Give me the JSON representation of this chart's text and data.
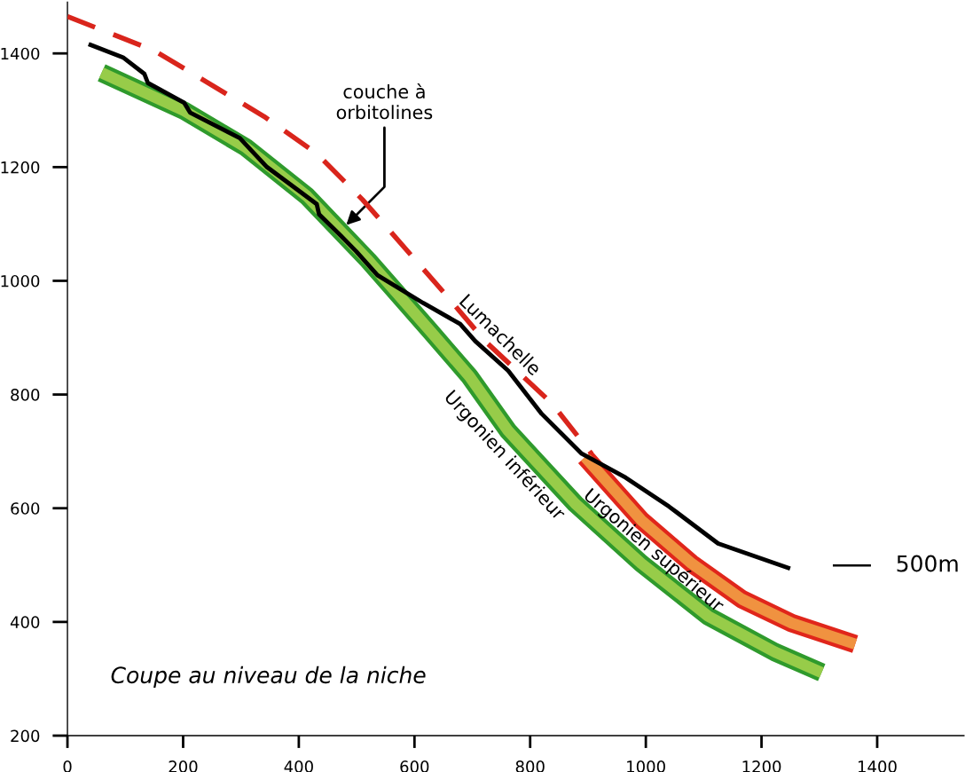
{
  "chart_data": {
    "type": "line",
    "xlim": [
      0,
      1550
    ],
    "ylim": [
      200,
      1490
    ],
    "xticks": [
      0,
      200,
      400,
      600,
      800,
      1000,
      1200,
      1400
    ],
    "yticks": [
      200,
      400,
      600,
      800,
      1000,
      1200,
      1400
    ],
    "grid": false,
    "legend": false,
    "marker": "none",
    "series": [
      {
        "color": "#000000",
        "line_style": "solid",
        "x": [
          40,
          96,
          133,
          139,
          202,
          212,
          298,
          345,
          431,
          435,
          472,
          499,
          536,
          615,
          679,
          705,
          762,
          820,
          889,
          965,
          1040,
          1125,
          1246
        ],
        "values": [
          1415,
          1393,
          1364,
          1348,
          1313,
          1296,
          1251,
          1200,
          1135,
          1117,
          1080,
          1052,
          1010,
          961,
          924,
          894,
          842,
          766,
          696,
          654,
          603,
          538,
          495
        ]
      },
      {
        "name": "Lumachelle",
        "color": "#d9251c",
        "line_style": "dashed",
        "x": [
          0,
          150,
          340,
          431,
          510,
          652,
          722,
          838,
          906
        ],
        "values": [
          1465,
          1405,
          1289,
          1224,
          1143,
          978,
          894,
          784,
          696
        ]
      },
      {
        "name": "Urgonien supérieur",
        "color": "#e0261b",
        "line_style": "solid",
        "x": [
          895,
          992,
          1079,
          1166,
          1252,
          1362
        ],
        "values": [
          690,
          579,
          503,
          440,
          398,
          361
        ]
      },
      {
        "name": "Urgonien inférieur",
        "color": "#2f9a2c",
        "line_style": "solid",
        "x": [
          59,
          202,
          308,
          414,
          520,
          626,
          695,
          762,
          878,
          992,
          1108,
          1223,
          1304
        ],
        "values": [
          1366,
          1299,
          1235,
          1149,
          1036,
          913,
          832,
          736,
          608,
          503,
          410,
          347,
          311
        ]
      }
    ],
    "annotations": [
      {
        "text": "couche à\norbitolines",
        "x": 482,
        "y": 1098
      },
      "Coupe au niveau de la niche",
      "500m"
    ]
  }
}
